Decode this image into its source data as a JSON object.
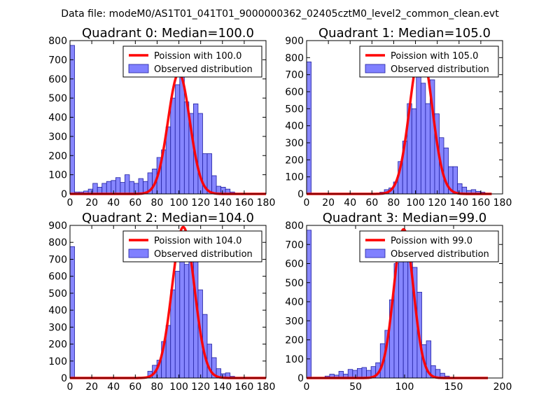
{
  "figure": {
    "suptitle": "Data file: modeM0/AS1T01_041T01_9000000362_02405cztM0_level2_common_clean.evt"
  },
  "colors": {
    "bar_fill": "#8080ff",
    "bar_edge": "#2020a0",
    "curve": "#ff0000",
    "axis": "#000000",
    "legend_edge": "#000000"
  },
  "chart_data": [
    {
      "type": "bar",
      "title": "Quadrant 0: Median=100.0",
      "xlim": [
        0,
        180
      ],
      "ylim": [
        0,
        800
      ],
      "xticks": [
        0,
        20,
        40,
        60,
        80,
        100,
        120,
        140,
        160,
        180
      ],
      "yticks": [
        0,
        100,
        200,
        300,
        400,
        500,
        600,
        700,
        800
      ],
      "bin_width": 4.2,
      "bins": [
        {
          "x": 0,
          "h": 775
        },
        {
          "x": 4.2,
          "h": 10
        },
        {
          "x": 8.4,
          "h": 10
        },
        {
          "x": 12.6,
          "h": 15
        },
        {
          "x": 16.8,
          "h": 25
        },
        {
          "x": 21,
          "h": 55
        },
        {
          "x": 25.2,
          "h": 35
        },
        {
          "x": 29.4,
          "h": 55
        },
        {
          "x": 33.6,
          "h": 65
        },
        {
          "x": 37.8,
          "h": 70
        },
        {
          "x": 42,
          "h": 85
        },
        {
          "x": 46.2,
          "h": 60
        },
        {
          "x": 50.4,
          "h": 100
        },
        {
          "x": 54.6,
          "h": 65
        },
        {
          "x": 58.8,
          "h": 55
        },
        {
          "x": 63,
          "h": 80
        },
        {
          "x": 67.2,
          "h": 65
        },
        {
          "x": 71.4,
          "h": 110
        },
        {
          "x": 75.6,
          "h": 130
        },
        {
          "x": 79.8,
          "h": 190
        },
        {
          "x": 84,
          "h": 230
        },
        {
          "x": 88.2,
          "h": 350
        },
        {
          "x": 92.4,
          "h": 500
        },
        {
          "x": 96.6,
          "h": 570
        },
        {
          "x": 100.8,
          "h": 640
        },
        {
          "x": 105,
          "h": 480
        },
        {
          "x": 109.2,
          "h": 420
        },
        {
          "x": 113.4,
          "h": 470
        },
        {
          "x": 117.6,
          "h": 420
        },
        {
          "x": 121.8,
          "h": 210
        },
        {
          "x": 126,
          "h": 210
        },
        {
          "x": 130.2,
          "h": 95
        },
        {
          "x": 134.4,
          "h": 40
        },
        {
          "x": 138.6,
          "h": 35
        },
        {
          "x": 142.8,
          "h": 25
        },
        {
          "x": 147,
          "h": 10
        }
      ],
      "series": [
        {
          "name": "Observed distribution",
          "kind": "histogram"
        },
        {
          "name": "Poission with 100.0",
          "kind": "poisson",
          "mu": 100.0,
          "sigma": 10.0,
          "peak": 630,
          "curve_xmax": 180
        }
      ],
      "legend": "upper right"
    },
    {
      "type": "bar",
      "title": "Quadrant 1: Median=105.0",
      "xlim": [
        0,
        180
      ],
      "ylim": [
        0,
        900
      ],
      "xticks": [
        0,
        20,
        40,
        60,
        80,
        100,
        120,
        140,
        160,
        180
      ],
      "yticks": [
        0,
        100,
        200,
        300,
        400,
        500,
        600,
        700,
        800,
        900
      ],
      "bin_width": 4.2,
      "bins": [
        {
          "x": 0,
          "h": 775
        },
        {
          "x": 67.2,
          "h": 10
        },
        {
          "x": 71.4,
          "h": 25
        },
        {
          "x": 75.6,
          "h": 35
        },
        {
          "x": 79.8,
          "h": 70
        },
        {
          "x": 84,
          "h": 190
        },
        {
          "x": 88.2,
          "h": 310
        },
        {
          "x": 92.4,
          "h": 530
        },
        {
          "x": 96.6,
          "h": 500
        },
        {
          "x": 100.8,
          "h": 710
        },
        {
          "x": 105,
          "h": 650
        },
        {
          "x": 109.2,
          "h": 530
        },
        {
          "x": 113.4,
          "h": 670
        },
        {
          "x": 117.6,
          "h": 470
        },
        {
          "x": 121.8,
          "h": 330
        },
        {
          "x": 126,
          "h": 270
        },
        {
          "x": 130.2,
          "h": 160
        },
        {
          "x": 134.4,
          "h": 160
        },
        {
          "x": 138.6,
          "h": 60
        },
        {
          "x": 142.8,
          "h": 40
        },
        {
          "x": 147,
          "h": 20
        },
        {
          "x": 151.2,
          "h": 25
        },
        {
          "x": 155.4,
          "h": 15
        },
        {
          "x": 159.6,
          "h": 10
        }
      ],
      "series": [
        {
          "name": "Observed distribution",
          "kind": "histogram"
        },
        {
          "name": "Poission with 105.0",
          "kind": "poisson",
          "mu": 105.0,
          "sigma": 10.25,
          "peak": 850,
          "curve_xmax": 170
        }
      ],
      "legend": "upper right"
    },
    {
      "type": "bar",
      "title": "Quadrant 2: Median=104.0",
      "xlim": [
        0,
        180
      ],
      "ylim": [
        0,
        900
      ],
      "xticks": [
        0,
        20,
        40,
        60,
        80,
        100,
        120,
        140,
        160,
        180
      ],
      "yticks": [
        0,
        100,
        200,
        300,
        400,
        500,
        600,
        700,
        800,
        900
      ],
      "bin_width": 4.2,
      "bins": [
        {
          "x": 0,
          "h": 775
        },
        {
          "x": 71.4,
          "h": 40
        },
        {
          "x": 75.6,
          "h": 75
        },
        {
          "x": 79.8,
          "h": 105
        },
        {
          "x": 84,
          "h": 215
        },
        {
          "x": 88.2,
          "h": 310
        },
        {
          "x": 92.4,
          "h": 520
        },
        {
          "x": 96.6,
          "h": 630
        },
        {
          "x": 100.8,
          "h": 790
        },
        {
          "x": 105,
          "h": 670
        },
        {
          "x": 109.2,
          "h": 700
        },
        {
          "x": 113.4,
          "h": 740
        },
        {
          "x": 117.6,
          "h": 520
        },
        {
          "x": 121.8,
          "h": 375
        },
        {
          "x": 126,
          "h": 200
        },
        {
          "x": 130.2,
          "h": 120
        },
        {
          "x": 134.4,
          "h": 55
        },
        {
          "x": 138.6,
          "h": 25
        },
        {
          "x": 142.8,
          "h": 30
        },
        {
          "x": 147,
          "h": 10
        }
      ],
      "series": [
        {
          "name": "Observed distribution",
          "kind": "histogram"
        },
        {
          "name": "Poission with 104.0",
          "kind": "poisson",
          "mu": 104.0,
          "sigma": 10.2,
          "peak": 890,
          "curve_xmax": 180
        }
      ],
      "legend": "upper right"
    },
    {
      "type": "bar",
      "title": "Quadrant 3: Median=99.0",
      "xlim": [
        0,
        200
      ],
      "ylim": [
        0,
        800
      ],
      "xticks": [
        0,
        50,
        100,
        150,
        200
      ],
      "yticks": [
        0,
        100,
        200,
        300,
        400,
        500,
        600,
        700,
        800
      ],
      "bin_width": 4.7,
      "bins": [
        {
          "x": 0,
          "h": 775
        },
        {
          "x": 18.8,
          "h": 10
        },
        {
          "x": 23.5,
          "h": 20
        },
        {
          "x": 28.2,
          "h": 15
        },
        {
          "x": 32.9,
          "h": 35
        },
        {
          "x": 37.6,
          "h": 20
        },
        {
          "x": 42.3,
          "h": 45
        },
        {
          "x": 47,
          "h": 40
        },
        {
          "x": 51.7,
          "h": 50
        },
        {
          "x": 56.4,
          "h": 55
        },
        {
          "x": 61.1,
          "h": 40
        },
        {
          "x": 65.8,
          "h": 60
        },
        {
          "x": 70.5,
          "h": 80
        },
        {
          "x": 75.2,
          "h": 180
        },
        {
          "x": 79.9,
          "h": 250
        },
        {
          "x": 84.6,
          "h": 410
        },
        {
          "x": 89.3,
          "h": 600
        },
        {
          "x": 94,
          "h": 750
        },
        {
          "x": 98.7,
          "h": 705
        },
        {
          "x": 103.4,
          "h": 760
        },
        {
          "x": 108.1,
          "h": 580
        },
        {
          "x": 112.8,
          "h": 450
        },
        {
          "x": 117.5,
          "h": 175
        },
        {
          "x": 122.2,
          "h": 195
        },
        {
          "x": 126.9,
          "h": 65
        },
        {
          "x": 131.6,
          "h": 45
        },
        {
          "x": 136.3,
          "h": 25
        },
        {
          "x": 141,
          "h": 10
        }
      ],
      "series": [
        {
          "name": "Observed distribution",
          "kind": "histogram"
        },
        {
          "name": "Poission with 99.0",
          "kind": "poisson",
          "mu": 99.0,
          "sigma": 9.95,
          "peak": 780,
          "curve_xmax": 185
        }
      ],
      "legend": "upper right"
    }
  ]
}
